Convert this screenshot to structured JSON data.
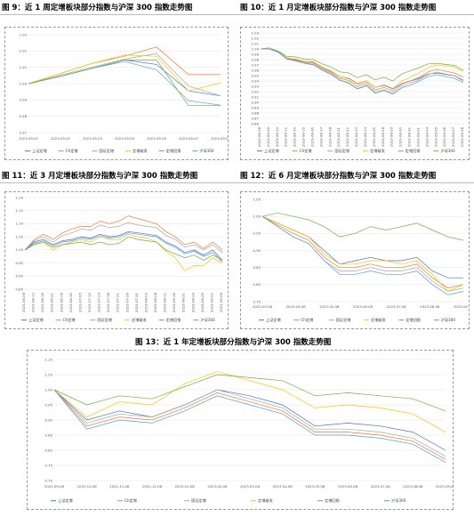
{
  "colors": {
    "上证定增": "#4472C4",
    "Ch定增": "#ED7D31",
    "国证定增": "#A5A5A5",
    "定增破发": "#FFC000",
    "定增回报": "#5B9BD5",
    "沪深300": "#70AD47"
  },
  "captions": {
    "fig9": "图 9：近 1 周定增板块部分指数与沪深 300 指数走势图",
    "fig10": "图 10：近 1 月定增板块部分指数与沪深 300 指数走势图",
    "fig11": "图 11：近 3 月定增板块部分指数与沪深 300 指数走势图",
    "fig12": "图 12：近 6 月定增板块部分指数与沪深 300 指数走势图",
    "fig13": "图 13：近 1 年定增板块部分指数与沪深 300 指数走势图"
  },
  "chart_data": [
    {
      "id": "fig9",
      "type": "line",
      "grid": true,
      "legend": "bottom",
      "ylim": [
        0.97,
        1.03
      ],
      "yticks": [
        "0.97",
        "0.98",
        "0.99",
        "1.00",
        "1.01",
        "1.02",
        "1.03"
      ],
      "x": [
        "2023-09-01",
        "2023-09-02",
        "2023-09-03",
        "2023-09-04",
        "2023-09-05",
        "2023-09-07",
        "2023-09-08"
      ],
      "series": [
        {
          "name": "上证定增",
          "values": [
            1.0,
            1.0045,
            1.0095,
            1.0145,
            1.0118,
            0.9955,
            0.9925
          ]
        },
        {
          "name": "Ch定增",
          "values": [
            1.0,
            1.0062,
            1.0125,
            1.0168,
            1.0225,
            1.0055,
            1.0055
          ]
        },
        {
          "name": "国证定增",
          "values": [
            1.0,
            1.0052,
            1.0102,
            1.015,
            1.0185,
            0.9985,
            0.9925
          ]
        },
        {
          "name": "定增破发",
          "values": [
            1.0,
            1.0062,
            1.0125,
            1.0175,
            1.0168,
            0.9955,
            1.0005
          ]
        },
        {
          "name": "定增回报",
          "values": [
            1.0,
            1.0045,
            1.0095,
            1.0135,
            1.0085,
            0.9895,
            0.9868
          ]
        },
        {
          "name": "沪深300",
          "values": [
            1.0,
            1.0045,
            1.0095,
            1.0145,
            1.0145,
            0.9865,
            0.9865
          ]
        }
      ]
    },
    {
      "id": "fig10",
      "type": "line",
      "grid": true,
      "legend": "bottom",
      "ylim": [
        0.86,
        1.03
      ],
      "yticks": [
        "0.86",
        "0.87",
        "0.88",
        "0.89",
        "0.90",
        "0.91",
        "0.92",
        "0.93",
        "0.94",
        "0.95",
        "0.96",
        "0.97",
        "0.98",
        "0.99",
        "1.00",
        "1.01",
        "1.02",
        "1.03"
      ],
      "x": [
        "2023-08-08",
        "2023-08-09",
        "2023-08-10",
        "2023-08-11",
        "2023-08-14",
        "2023-08-15",
        "2023-08-16",
        "2023-08-17",
        "2023-08-18",
        "2023-08-21",
        "2023-08-22",
        "2023-08-23",
        "2023-08-24",
        "2023-08-25",
        "2023-08-28",
        "2023-08-29",
        "2023-08-30",
        "2023-08-31",
        "2023-09-01",
        "2023-09-04",
        "2023-09-05",
        "2023-09-06",
        "2023-09-07",
        "2023-09-08"
      ],
      "series": [
        {
          "name": "上证定增",
          "values": [
            1.0,
            1.0,
            0.995,
            0.983,
            0.98,
            0.977,
            0.975,
            0.965,
            0.958,
            0.948,
            0.945,
            0.935,
            0.94,
            0.928,
            0.932,
            0.925,
            0.935,
            0.94,
            0.945,
            0.953,
            0.955,
            0.952,
            0.95,
            0.94
          ]
        },
        {
          "name": "Ch定增",
          "values": [
            1.0,
            1.0,
            0.994,
            0.982,
            0.979,
            0.975,
            0.973,
            0.963,
            0.956,
            0.945,
            0.941,
            0.93,
            0.937,
            0.923,
            0.928,
            0.921,
            0.934,
            0.94,
            0.947,
            0.957,
            0.962,
            0.958,
            0.955,
            0.947
          ]
        },
        {
          "name": "国证定增",
          "values": [
            1.0,
            1.0,
            0.994,
            0.981,
            0.978,
            0.974,
            0.971,
            0.961,
            0.954,
            0.942,
            0.937,
            0.926,
            0.933,
            0.919,
            0.924,
            0.917,
            0.93,
            0.936,
            0.943,
            0.952,
            0.957,
            0.953,
            0.95,
            0.942
          ]
        },
        {
          "name": "定增破发",
          "values": [
            1.0,
            1.0,
            0.994,
            0.983,
            0.981,
            0.977,
            0.976,
            0.966,
            0.959,
            0.948,
            0.944,
            0.934,
            0.94,
            0.928,
            0.933,
            0.926,
            0.94,
            0.947,
            0.955,
            0.965,
            0.97,
            0.968,
            0.966,
            0.958
          ]
        },
        {
          "name": "定增回报",
          "values": [
            1.0,
            1.0,
            0.994,
            0.981,
            0.977,
            0.973,
            0.97,
            0.96,
            0.952,
            0.941,
            0.936,
            0.925,
            0.931,
            0.917,
            0.922,
            0.915,
            0.927,
            0.932,
            0.94,
            0.948,
            0.952,
            0.948,
            0.945,
            0.937
          ]
        },
        {
          "name": "沪深300",
          "values": [
            1.0,
            1.002,
            0.996,
            0.986,
            0.985,
            0.981,
            0.98,
            0.972,
            0.966,
            0.957,
            0.955,
            0.946,
            0.952,
            0.942,
            0.947,
            0.94,
            0.953,
            0.959,
            0.965,
            0.972,
            0.973,
            0.971,
            0.969,
            0.96
          ]
        }
      ]
    },
    {
      "id": "fig11",
      "type": "line",
      "grid": true,
      "legend": "bottom",
      "ylim": [
        0.85,
        1.2
      ],
      "yticks": [
        "0.85",
        "0.90",
        "0.95",
        "1.00",
        "1.05",
        "1.10",
        "1.15",
        "1.20"
      ],
      "x": [
        "2023-06-08",
        "2023-06-13",
        "2023-06-16",
        "2023-06-21",
        "2023-06-28",
        "2023-06-30",
        "2023-07-05",
        "2023-07-10",
        "2023-07-13",
        "2023-07-18",
        "2023-07-21",
        "2023-07-26",
        "2023-07-31",
        "2023-08-03",
        "2023-08-08",
        "2023-08-11",
        "2023-08-16",
        "2023-08-21",
        "2023-08-24",
        "2023-08-29",
        "2023-09-01",
        "2023-09-06"
      ],
      "series": [
        {
          "name": "上证定增",
          "values": [
            1.0,
            1.03,
            1.04,
            1.02,
            1.035,
            1.04,
            1.05,
            1.045,
            1.06,
            1.05,
            1.055,
            1.07,
            1.065,
            1.06,
            1.055,
            1.03,
            1.015,
            0.99,
            1.0,
            0.98,
            1.0,
            0.96
          ]
        },
        {
          "name": "Ch定增",
          "values": [
            1.0,
            1.04,
            1.06,
            1.04,
            1.065,
            1.08,
            1.09,
            1.09,
            1.11,
            1.1,
            1.11,
            1.13,
            1.12,
            1.11,
            1.1,
            1.07,
            1.05,
            1.02,
            1.03,
            1.005,
            1.03,
            1.0
          ]
        },
        {
          "name": "国证定增",
          "values": [
            1.0,
            1.035,
            1.05,
            1.03,
            1.055,
            1.065,
            1.08,
            1.075,
            1.095,
            1.085,
            1.09,
            1.105,
            1.095,
            1.09,
            1.085,
            1.055,
            1.04,
            1.01,
            1.02,
            1.0,
            1.02,
            0.99
          ]
        },
        {
          "name": "定增破发",
          "values": [
            1.0,
            1.02,
            1.03,
            1.0,
            1.02,
            1.03,
            1.04,
            1.03,
            1.05,
            1.04,
            1.04,
            1.06,
            1.05,
            1.045,
            1.03,
            0.995,
            0.97,
            0.92,
            0.94,
            0.94,
            0.97,
            0.95
          ]
        },
        {
          "name": "定增回报",
          "values": [
            1.0,
            1.025,
            1.035,
            1.015,
            1.03,
            1.035,
            1.045,
            1.04,
            1.055,
            1.045,
            1.05,
            1.065,
            1.06,
            1.055,
            1.05,
            1.025,
            1.01,
            0.985,
            0.995,
            0.975,
            0.99,
            0.955
          ]
        },
        {
          "name": "沪深300",
          "values": [
            1.0,
            1.02,
            1.03,
            1.01,
            1.02,
            1.025,
            1.03,
            1.02,
            1.03,
            1.02,
            1.025,
            1.05,
            1.04,
            1.035,
            1.03,
            1.0,
            0.985,
            0.97,
            0.98,
            0.96,
            0.98,
            0.96
          ]
        }
      ]
    },
    {
      "id": "fig12",
      "type": "line",
      "grid": true,
      "legend": "bottom",
      "ylim": [
        0.75,
        1.05
      ],
      "yticks": [
        "0.75",
        "0.80",
        "0.85",
        "0.90",
        "0.95",
        "1.00",
        "1.05"
      ],
      "x": [
        "2023-03-08",
        "2023-03-22",
        "2023-04-05",
        "2023-04-19",
        "2023-05-03",
        "2023-05-17",
        "2023-05-31",
        "2023-06-14",
        "2023-06-28",
        "2023-07-12",
        "2023-07-26",
        "2023-08-09",
        "2023-08-23",
        "2023-09-06"
      ],
      "xticks": [
        "2023-03-08",
        "2023-04-08",
        "2023-05-08",
        "2023-06-08",
        "2023-07-08",
        "2023-08-08",
        "2023-09-08"
      ],
      "series": [
        {
          "name": "上证定增",
          "values": [
            1.0,
            0.98,
            0.96,
            0.94,
            0.9,
            0.86,
            0.87,
            0.88,
            0.87,
            0.87,
            0.88,
            0.84,
            0.82,
            0.82
          ]
        },
        {
          "name": "Ch定增",
          "values": [
            1.0,
            0.975,
            0.95,
            0.93,
            0.88,
            0.85,
            0.85,
            0.86,
            0.85,
            0.85,
            0.86,
            0.82,
            0.79,
            0.8
          ]
        },
        {
          "name": "国证定增",
          "values": [
            1.0,
            0.97,
            0.94,
            0.92,
            0.87,
            0.84,
            0.84,
            0.85,
            0.84,
            0.84,
            0.85,
            0.81,
            0.78,
            0.79
          ]
        },
        {
          "name": "定增破发",
          "values": [
            1.0,
            0.98,
            0.96,
            0.94,
            0.89,
            0.86,
            0.86,
            0.87,
            0.87,
            0.86,
            0.87,
            0.83,
            0.78,
            0.8
          ]
        },
        {
          "name": "定增回报",
          "values": [
            1.0,
            0.97,
            0.94,
            0.92,
            0.87,
            0.83,
            0.83,
            0.84,
            0.83,
            0.83,
            0.84,
            0.8,
            0.77,
            0.78
          ]
        },
        {
          "name": "沪深300",
          "values": [
            1.0,
            1.01,
            1.0,
            0.99,
            0.97,
            0.94,
            0.95,
            0.97,
            0.96,
            0.97,
            0.98,
            0.96,
            0.94,
            0.93
          ]
        }
      ]
    },
    {
      "id": "fig13",
      "type": "line",
      "grid": true,
      "legend": "bottom",
      "ylim": [
        0.7,
        1.1
      ],
      "yticks": [
        "0.70",
        "0.75",
        "0.80",
        "0.85",
        "0.90",
        "0.95",
        "1.00",
        "1.05",
        "1.10"
      ],
      "x": [
        "2022-09-08",
        "2022-10-08",
        "2022-11-08",
        "2022-12-08",
        "2023-01-08",
        "2023-02-08",
        "2023-03-08",
        "2023-04-08",
        "2023-05-08",
        "2023-06-08",
        "2023-07-08",
        "2023-08-08",
        "2023-09-08"
      ],
      "xticks": [
        "2022-09-08",
        "2022-10-08",
        "2022-11-08",
        "2022-12-08",
        "2023-01-08",
        "2023-02-08",
        "2023-03-08",
        "2023-04-08",
        "2023-05-08",
        "2023-06-08",
        "2023-07-08",
        "2023-08-08",
        "2023-09-08"
      ],
      "series": [
        {
          "name": "上证定增",
          "values": [
            1.0,
            0.9,
            0.93,
            0.91,
            0.95,
            1.0,
            0.98,
            0.95,
            0.88,
            0.89,
            0.88,
            0.86,
            0.8
          ]
        },
        {
          "name": "Ch定增",
          "values": [
            1.0,
            0.88,
            0.91,
            0.9,
            0.94,
            0.99,
            0.96,
            0.93,
            0.86,
            0.86,
            0.85,
            0.83,
            0.77
          ]
        },
        {
          "name": "国证定增",
          "values": [
            1.0,
            0.89,
            0.92,
            0.91,
            0.95,
            1.0,
            0.97,
            0.94,
            0.87,
            0.87,
            0.86,
            0.84,
            0.78
          ]
        },
        {
          "name": "定增破发",
          "values": [
            1.0,
            0.91,
            0.96,
            0.95,
            1.02,
            1.06,
            1.03,
            1.0,
            0.94,
            0.95,
            0.94,
            0.92,
            0.86
          ]
        },
        {
          "name": "定增回报",
          "values": [
            1.0,
            0.87,
            0.9,
            0.89,
            0.93,
            0.98,
            0.95,
            0.92,
            0.85,
            0.85,
            0.84,
            0.82,
            0.76
          ]
        },
        {
          "name": "沪深300",
          "values": [
            1.0,
            0.95,
            0.98,
            0.97,
            1.01,
            1.05,
            1.04,
            1.03,
            0.98,
            0.99,
            0.98,
            0.97,
            0.93
          ]
        }
      ]
    }
  ]
}
